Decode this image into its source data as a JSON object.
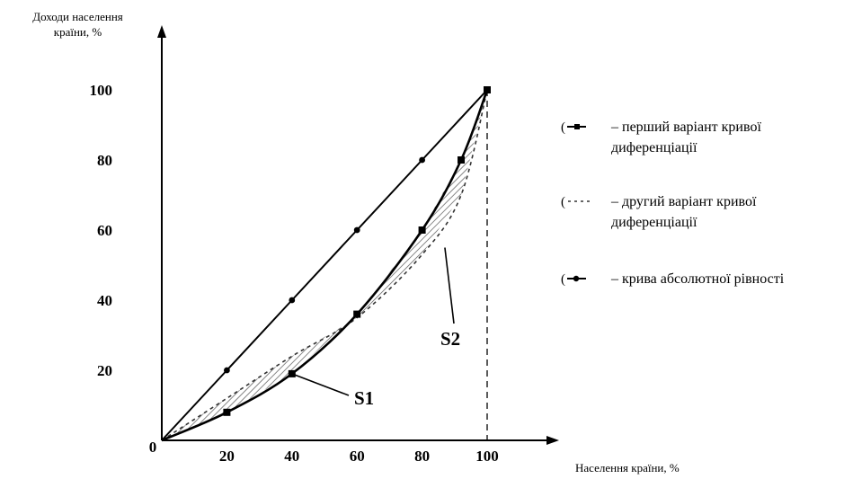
{
  "chart_data": {
    "type": "line",
    "ylabel_lines": [
      "Доходи населення",
      "країни, %"
    ],
    "xlabel": "Населення країни, %",
    "x_ticks": [
      "20",
      "40",
      "60",
      "80",
      "100"
    ],
    "y_ticks": [
      "20",
      "40",
      "60",
      "80",
      "100"
    ],
    "origin_label": "0",
    "xlim": [
      0,
      100
    ],
    "ylim": [
      0,
      100
    ],
    "grid": false,
    "legend_position": "right",
    "series": [
      {
        "name": "перший варіант кривої диференціації",
        "style": "solid-square-markers",
        "x": [
          0,
          20,
          40,
          60,
          80,
          92,
          100
        ],
        "y": [
          0,
          8,
          19,
          36,
          60,
          80,
          100
        ]
      },
      {
        "name": "другий варіант кривої диференціації",
        "style": "dashed",
        "x": [
          0,
          20,
          40,
          60,
          80,
          92,
          100
        ],
        "y": [
          0,
          12,
          24,
          35,
          53,
          70,
          100
        ]
      },
      {
        "name": "крива абсолютної рівності",
        "style": "solid-dot-markers",
        "x": [
          0,
          20,
          40,
          60,
          80,
          100
        ],
        "y": [
          0,
          20,
          40,
          60,
          80,
          100
        ]
      }
    ],
    "reference_line_x": 100,
    "annotations": [
      {
        "text": "S1",
        "point": [
          40,
          19
        ]
      },
      {
        "text": "S2",
        "point": [
          87,
          55
        ]
      }
    ]
  },
  "legend": {
    "items": [
      {
        "lines": [
          "– перший варіант кривої",
          "диференціації"
        ],
        "symbol": "square-line"
      },
      {
        "lines": [
          "– другий варіант кривої",
          "диференціації"
        ],
        "symbol": "dashed-line"
      },
      {
        "lines": [
          "– крива абсолютної рівності"
        ],
        "symbol": "dot-line"
      }
    ]
  }
}
